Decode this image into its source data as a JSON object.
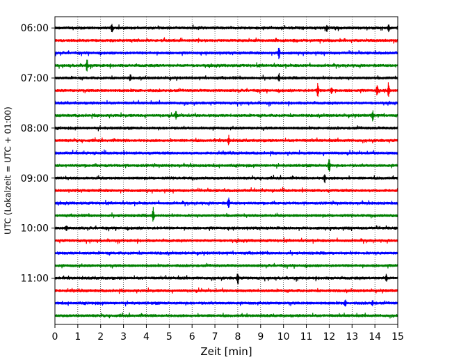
{
  "chart_data": {
    "type": "line",
    "title": "",
    "xlabel": "Zeit  [min]",
    "ylabel": "UTC (Lokalzeit = UTC + 01:00)",
    "xlim": [
      0,
      15
    ],
    "x_ticks": [
      "0",
      "1",
      "2",
      "3",
      "4",
      "5",
      "6",
      "7",
      "8",
      "9",
      "10",
      "11",
      "12",
      "13",
      "14",
      "15"
    ],
    "y_tick_labels": [
      "06:00",
      "07:00",
      "08:00",
      "09:00",
      "10:00",
      "11:00"
    ],
    "grid": "vertical-dotted",
    "legend": "none",
    "trace_interval_min": 15,
    "color_cycle": [
      "#000000",
      "#ff0000",
      "#0000ff",
      "#008000"
    ],
    "traces": [
      {
        "start": "06:00",
        "events": [
          {
            "t": 2.5,
            "a": 6
          },
          {
            "t": 11.9,
            "a": 5
          },
          {
            "t": 14.6,
            "a": 4
          }
        ]
      },
      {
        "start": "06:15",
        "events": []
      },
      {
        "start": "06:30",
        "events": [
          {
            "t": 9.8,
            "a": 9
          }
        ]
      },
      {
        "start": "06:45",
        "events": [
          {
            "t": 1.4,
            "a": 10
          }
        ]
      },
      {
        "start": "07:00",
        "events": [
          {
            "t": 3.3,
            "a": 4
          },
          {
            "t": 9.8,
            "a": 6
          }
        ]
      },
      {
        "start": "07:15",
        "events": [
          {
            "t": 11.5,
            "a": 11
          },
          {
            "t": 12.1,
            "a": 6
          },
          {
            "t": 14.1,
            "a": 9
          },
          {
            "t": 14.6,
            "a": 12
          }
        ]
      },
      {
        "start": "07:30",
        "events": []
      },
      {
        "start": "07:45",
        "events": [
          {
            "t": 5.3,
            "a": 6
          },
          {
            "t": 13.9,
            "a": 8
          }
        ]
      },
      {
        "start": "08:00",
        "events": []
      },
      {
        "start": "08:15",
        "events": [
          {
            "t": 7.6,
            "a": 7
          }
        ]
      },
      {
        "start": "08:30",
        "events": []
      },
      {
        "start": "08:45",
        "events": [
          {
            "t": 12.0,
            "a": 13
          }
        ]
      },
      {
        "start": "09:00",
        "events": [
          {
            "t": 11.8,
            "a": 7
          }
        ]
      },
      {
        "start": "09:15",
        "events": []
      },
      {
        "start": "09:30",
        "events": [
          {
            "t": 7.6,
            "a": 9
          }
        ]
      },
      {
        "start": "09:45",
        "events": [
          {
            "t": 4.3,
            "a": 11
          }
        ]
      },
      {
        "start": "10:00",
        "events": [
          {
            "t": 0.5,
            "a": 4
          }
        ]
      },
      {
        "start": "10:15",
        "events": []
      },
      {
        "start": "10:30",
        "events": []
      },
      {
        "start": "10:45",
        "events": []
      },
      {
        "start": "11:00",
        "events": [
          {
            "t": 8.0,
            "a": 9
          },
          {
            "t": 14.5,
            "a": 5
          }
        ]
      },
      {
        "start": "11:15",
        "events": []
      },
      {
        "start": "11:30",
        "events": [
          {
            "t": 12.7,
            "a": 5
          },
          {
            "t": 13.9,
            "a": 4
          }
        ]
      },
      {
        "start": "11:45",
        "events": []
      }
    ]
  }
}
